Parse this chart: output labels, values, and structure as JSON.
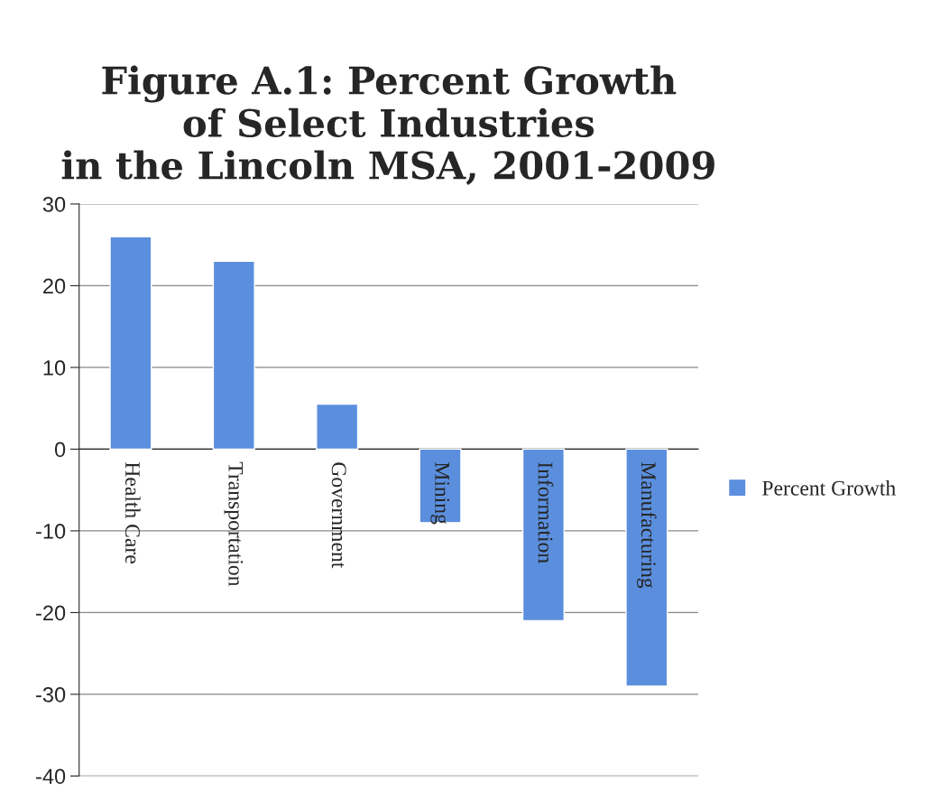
{
  "chart_data": {
    "type": "bar",
    "title": "Figure A.1: Percent Growth\nof Select Industries\nin the Lincoln MSA, 2001-2009",
    "categories": [
      "Health Care",
      "Transportation",
      "Government",
      "Mining",
      "Information",
      "Manufacturing"
    ],
    "series": [
      {
        "name": "Percent Growth",
        "color": "#5b8fde",
        "values": [
          26,
          23,
          5.5,
          -9,
          -21,
          -29
        ]
      }
    ],
    "ylim": [
      -40,
      30
    ],
    "yticks": [
      -40,
      -30,
      -20,
      -10,
      0,
      10,
      20,
      30
    ],
    "grid": "y",
    "legend": "right"
  }
}
